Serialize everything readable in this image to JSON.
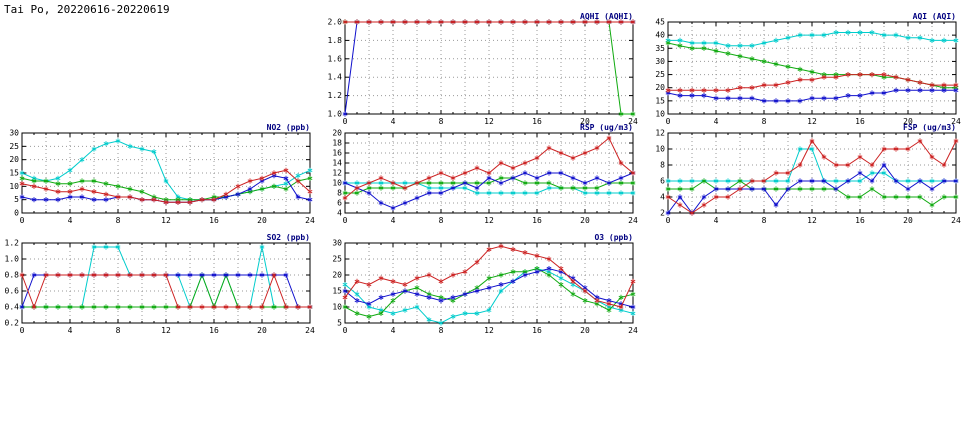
{
  "header": {
    "title": "Tai Po, 20220616-20220619"
  },
  "colors": {
    "red": "#cc2222",
    "blue": "#1111cc",
    "green": "#11aa11",
    "cyan": "#00cccc",
    "title": "#000080",
    "grid": "#999999",
    "axis": "#000000"
  },
  "chart_data": [
    {
      "id": "aqhi",
      "type": "line",
      "title": "AQHI (AQHI)",
      "xlim": [
        0,
        24
      ],
      "x_step": 1,
      "x_grid_step": 2,
      "x_tick_labels": [
        "0",
        "4",
        "8",
        "12",
        "16",
        "20",
        "24"
      ],
      "ylim": [
        1.0,
        2.0
      ],
      "y_tick_labels": [
        "1.0",
        "1.2",
        "1.4",
        "1.6",
        "1.8",
        "2.0"
      ],
      "series": [
        {
          "name": "red",
          "color": "#cc2222",
          "values": [
            2.0,
            2.0,
            2.0,
            2.0,
            2.0,
            2.0,
            2.0,
            2.0,
            2.0,
            2.0,
            2.0,
            2.0,
            2.0,
            2.0,
            2.0,
            2.0,
            2.0,
            2.0,
            2.0,
            2.0,
            2.0,
            2.0,
            2.0,
            2.0,
            2.0
          ]
        },
        {
          "name": "blue",
          "color": "#1111cc",
          "values": [
            1.0,
            2.0,
            2.0,
            2.0,
            2.0,
            2.0,
            2.0,
            2.0,
            2.0,
            2.0,
            2.0,
            2.0,
            2.0,
            2.0,
            2.0,
            2.0,
            2.0,
            2.0,
            2.0,
            2.0,
            2.0,
            2.0,
            2.0,
            2.0,
            2.0
          ]
        },
        {
          "name": "green",
          "color": "#11aa11",
          "values": [
            2.0,
            2.0,
            2.0,
            2.0,
            2.0,
            2.0,
            2.0,
            2.0,
            2.0,
            2.0,
            2.0,
            2.0,
            2.0,
            2.0,
            2.0,
            2.0,
            2.0,
            2.0,
            2.0,
            2.0,
            2.0,
            2.0,
            2.0,
            1.0,
            1.0
          ]
        },
        {
          "name": "cyan",
          "color": "#00cccc",
          "values": [
            2.0,
            2.0,
            2.0,
            2.0,
            2.0,
            2.0,
            2.0,
            2.0,
            2.0,
            2.0,
            2.0,
            2.0,
            2.0,
            2.0,
            2.0,
            2.0,
            2.0,
            2.0,
            2.0,
            2.0,
            2.0,
            2.0,
            2.0,
            2.0,
            2.0
          ]
        }
      ]
    },
    {
      "id": "aqi",
      "type": "line",
      "title": "AQI (AQI)",
      "xlim": [
        0,
        24
      ],
      "x_step": 1,
      "x_grid_step": 2,
      "x_tick_labels": [
        "0",
        "4",
        "8",
        "12",
        "16",
        "20",
        "24"
      ],
      "ylim": [
        10,
        45
      ],
      "y_tick_labels": [
        "10",
        "15",
        "20",
        "25",
        "30",
        "35",
        "40",
        "45"
      ],
      "series": [
        {
          "name": "red",
          "color": "#cc2222",
          "values": [
            19,
            19,
            19,
            19,
            19,
            19,
            20,
            20,
            21,
            21,
            22,
            23,
            23,
            24,
            24,
            25,
            25,
            25,
            25,
            24,
            23,
            22,
            21,
            21,
            21
          ]
        },
        {
          "name": "blue",
          "color": "#1111cc",
          "values": [
            18,
            17,
            17,
            17,
            16,
            16,
            16,
            16,
            15,
            15,
            15,
            15,
            16,
            16,
            16,
            17,
            17,
            18,
            18,
            19,
            19,
            19,
            19,
            19,
            19
          ]
        },
        {
          "name": "green",
          "color": "#11aa11",
          "values": [
            37,
            36,
            35,
            35,
            34,
            33,
            32,
            31,
            30,
            29,
            28,
            27,
            26,
            25,
            25,
            25,
            25,
            25,
            24,
            24,
            23,
            22,
            21,
            20,
            20
          ]
        },
        {
          "name": "cyan",
          "color": "#00cccc",
          "values": [
            38,
            38,
            37,
            37,
            37,
            36,
            36,
            36,
            37,
            38,
            39,
            40,
            40,
            40,
            41,
            41,
            41,
            41,
            40,
            40,
            39,
            39,
            38,
            38,
            38
          ]
        }
      ]
    },
    {
      "id": "no2",
      "type": "line",
      "title": "NO2 (ppb)",
      "xlim": [
        0,
        24
      ],
      "x_step": 1,
      "x_grid_step": 2,
      "x_tick_labels": [
        "0",
        "4",
        "8",
        "12",
        "16",
        "20",
        "24"
      ],
      "ylim": [
        0,
        30
      ],
      "y_tick_labels": [
        "0",
        "5",
        "10",
        "15",
        "20",
        "25",
        "30"
      ],
      "series": [
        {
          "name": "red",
          "color": "#cc2222",
          "values": [
            11,
            10,
            9,
            8,
            8,
            9,
            8,
            7,
            6,
            6,
            5,
            5,
            4,
            4,
            4,
            5,
            5,
            7,
            10,
            12,
            13,
            15,
            16,
            12,
            8
          ]
        },
        {
          "name": "blue",
          "color": "#1111cc",
          "values": [
            6,
            5,
            5,
            5,
            6,
            6,
            5,
            5,
            6,
            6,
            5,
            5,
            4,
            4,
            4,
            5,
            5,
            6,
            7,
            9,
            12,
            14,
            13,
            6,
            5
          ]
        },
        {
          "name": "green",
          "color": "#11aa11",
          "values": [
            13,
            12,
            12,
            11,
            11,
            12,
            12,
            11,
            10,
            9,
            8,
            6,
            5,
            5,
            5,
            5,
            6,
            6,
            7,
            8,
            9,
            10,
            9,
            12,
            13
          ]
        },
        {
          "name": "cyan",
          "color": "#00cccc",
          "values": [
            15,
            13,
            12,
            13,
            16,
            20,
            24,
            26,
            27,
            25,
            24,
            23,
            12,
            6,
            5,
            5,
            5,
            6,
            7,
            8,
            9,
            10,
            11,
            14,
            16
          ]
        }
      ]
    },
    {
      "id": "rsp",
      "type": "line",
      "title": "RSP (ug/m3)",
      "xlim": [
        0,
        24
      ],
      "x_step": 1,
      "x_grid_step": 2,
      "x_tick_labels": [
        "0",
        "4",
        "8",
        "12",
        "16",
        "20",
        "24"
      ],
      "ylim": [
        4,
        20
      ],
      "y_tick_labels": [
        "4",
        "6",
        "8",
        "10",
        "12",
        "14",
        "16",
        "18",
        "20"
      ],
      "series": [
        {
          "name": "red",
          "color": "#cc2222",
          "values": [
            7,
            9,
            10,
            11,
            10,
            9,
            10,
            11,
            12,
            11,
            12,
            13,
            12,
            14,
            13,
            14,
            15,
            17,
            16,
            15,
            16,
            17,
            19,
            14,
            12
          ]
        },
        {
          "name": "blue",
          "color": "#1111cc",
          "values": [
            10,
            9,
            8,
            6,
            5,
            6,
            7,
            8,
            8,
            9,
            10,
            9,
            11,
            10,
            11,
            12,
            11,
            12,
            12,
            11,
            10,
            11,
            10,
            11,
            12
          ]
        },
        {
          "name": "green",
          "color": "#11aa11",
          "values": [
            8,
            8,
            9,
            9,
            9,
            9,
            10,
            10,
            10,
            10,
            10,
            10,
            10,
            11,
            11,
            10,
            10,
            10,
            9,
            9,
            9,
            9,
            10,
            10,
            10
          ]
        },
        {
          "name": "cyan",
          "color": "#00cccc",
          "values": [
            10,
            10,
            10,
            10,
            10,
            10,
            10,
            9,
            9,
            9,
            9,
            8,
            8,
            8,
            8,
            8,
            8,
            9,
            9,
            9,
            8,
            8,
            8,
            8,
            8
          ]
        }
      ]
    },
    {
      "id": "fsp",
      "type": "line",
      "title": "FSP (ug/m3)",
      "xlim": [
        0,
        24
      ],
      "x_step": 1,
      "x_grid_step": 2,
      "x_tick_labels": [
        "0",
        "4",
        "8",
        "12",
        "16",
        "20",
        "24"
      ],
      "ylim": [
        2,
        12
      ],
      "y_tick_labels": [
        "2",
        "4",
        "6",
        "8",
        "10",
        "12"
      ],
      "series": [
        {
          "name": "red",
          "color": "#cc2222",
          "values": [
            4,
            3,
            2,
            3,
            4,
            4,
            5,
            6,
            6,
            7,
            7,
            8,
            11,
            9,
            8,
            8,
            9,
            8,
            10,
            10,
            10,
            11,
            9,
            8,
            11
          ]
        },
        {
          "name": "blue",
          "color": "#1111cc",
          "values": [
            2,
            4,
            2,
            4,
            5,
            5,
            5,
            5,
            5,
            3,
            5,
            6,
            6,
            6,
            5,
            6,
            7,
            6,
            8,
            6,
            5,
            6,
            5,
            6,
            6
          ]
        },
        {
          "name": "green",
          "color": "#11aa11",
          "values": [
            5,
            5,
            5,
            6,
            5,
            5,
            6,
            5,
            5,
            5,
            5,
            5,
            5,
            5,
            5,
            4,
            4,
            5,
            4,
            4,
            4,
            4,
            3,
            4,
            4
          ]
        },
        {
          "name": "cyan",
          "color": "#00cccc",
          "values": [
            6,
            6,
            6,
            6,
            6,
            6,
            6,
            6,
            6,
            6,
            6,
            10,
            10,
            6,
            6,
            6,
            6,
            7,
            7,
            6,
            6,
            6,
            6,
            6,
            6
          ]
        }
      ]
    },
    {
      "id": "so2",
      "type": "line",
      "title": "SO2 (ppb)",
      "xlim": [
        0,
        24
      ],
      "x_step": 1,
      "x_grid_step": 2,
      "x_tick_labels": [
        "0",
        "4",
        "8",
        "12",
        "16",
        "20",
        "24"
      ],
      "ylim": [
        0.2,
        1.2
      ],
      "y_tick_labels": [
        "0.2",
        "0.4",
        "0.6",
        "0.8",
        "1.0",
        "1.2"
      ],
      "series": [
        {
          "name": "red",
          "color": "#cc2222",
          "values": [
            0.8,
            0.4,
            0.8,
            0.8,
            0.8,
            0.8,
            0.8,
            0.8,
            0.8,
            0.8,
            0.8,
            0.8,
            0.8,
            0.4,
            0.4,
            0.4,
            0.4,
            0.4,
            0.4,
            0.4,
            0.4,
            0.8,
            0.4,
            0.4,
            0.4
          ]
        },
        {
          "name": "blue",
          "color": "#1111cc",
          "values": [
            0.4,
            0.8,
            0.8,
            0.8,
            0.8,
            0.8,
            0.8,
            0.8,
            0.8,
            0.8,
            0.8,
            0.8,
            0.8,
            0.8,
            0.8,
            0.8,
            0.8,
            0.8,
            0.8,
            0.8,
            0.8,
            0.8,
            0.8,
            0.4,
            0.4
          ]
        },
        {
          "name": "green",
          "color": "#11aa11",
          "values": [
            0.4,
            0.4,
            0.4,
            0.4,
            0.4,
            0.4,
            0.4,
            0.4,
            0.4,
            0.4,
            0.4,
            0.4,
            0.4,
            0.4,
            0.4,
            0.8,
            0.4,
            0.8,
            0.4,
            0.4,
            0.4,
            0.4,
            0.4,
            0.4,
            0.4
          ]
        },
        {
          "name": "cyan",
          "color": "#00cccc",
          "values": [
            0.4,
            0.4,
            0.4,
            0.4,
            0.4,
            0.4,
            1.15,
            1.15,
            1.15,
            0.8,
            0.8,
            0.8,
            0.8,
            0.8,
            0.4,
            0.8,
            0.4,
            0.8,
            0.4,
            0.4,
            1.15,
            0.4,
            0.4,
            0.4,
            0.4
          ]
        }
      ]
    },
    {
      "id": "o3",
      "type": "line",
      "title": "O3 (ppb)",
      "xlim": [
        0,
        24
      ],
      "x_step": 1,
      "x_grid_step": 2,
      "x_tick_labels": [
        "0",
        "4",
        "8",
        "12",
        "16",
        "20",
        "24"
      ],
      "ylim": [
        5,
        30
      ],
      "y_tick_labels": [
        "5",
        "10",
        "15",
        "20",
        "25",
        "30"
      ],
      "series": [
        {
          "name": "red",
          "color": "#cc2222",
          "values": [
            13,
            18,
            17,
            19,
            18,
            17,
            19,
            20,
            18,
            20,
            21,
            24,
            28,
            29,
            28,
            27,
            26,
            25,
            22,
            18,
            15,
            12,
            11,
            10,
            18
          ]
        },
        {
          "name": "blue",
          "color": "#1111cc",
          "values": [
            15,
            12,
            11,
            13,
            14,
            15,
            14,
            13,
            12,
            13,
            14,
            15,
            16,
            17,
            18,
            20,
            21,
            22,
            21,
            19,
            16,
            13,
            12,
            11,
            10
          ]
        },
        {
          "name": "green",
          "color": "#11aa11",
          "values": [
            10,
            8,
            7,
            8,
            12,
            15,
            16,
            14,
            13,
            12,
            14,
            16,
            19,
            20,
            21,
            21,
            22,
            20,
            17,
            14,
            12,
            11,
            9,
            13,
            14
          ]
        },
        {
          "name": "cyan",
          "color": "#00cccc",
          "values": [
            17,
            14,
            10,
            9,
            8,
            9,
            10,
            6,
            5,
            7,
            8,
            8,
            9,
            15,
            18,
            21,
            22,
            21,
            19,
            17,
            15,
            12,
            10,
            9,
            8
          ]
        }
      ]
    }
  ]
}
